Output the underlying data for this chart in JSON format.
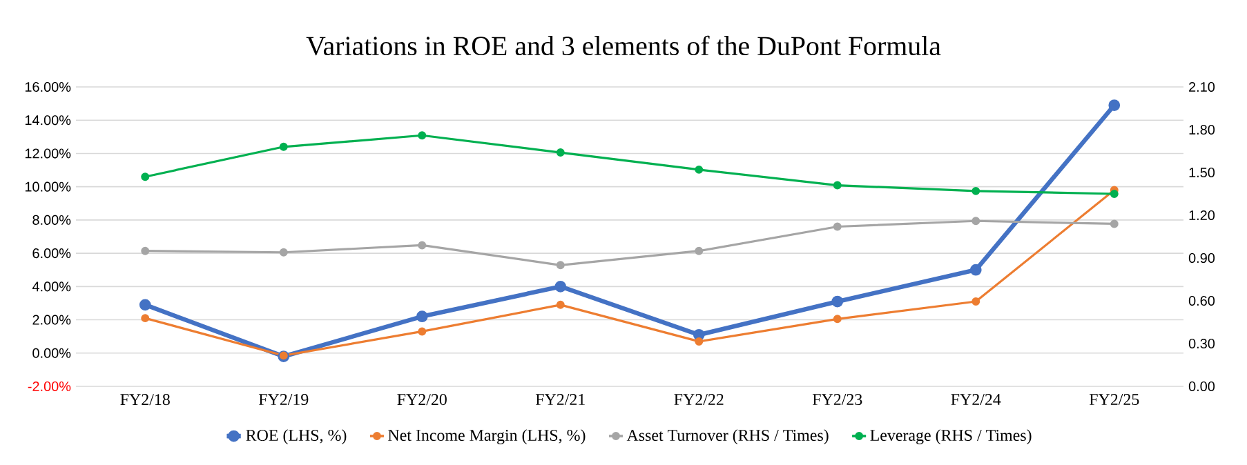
{
  "chart_data": {
    "type": "line",
    "title": "Variations in ROE and 3 elements of the DuPont Formula",
    "categories": [
      "FY2/18",
      "FY2/19",
      "FY2/20",
      "FY2/21",
      "FY2/22",
      "FY2/23",
      "FY2/24",
      "FY2/25"
    ],
    "series": [
      {
        "name": "ROE (LHS, %)",
        "color": "#4472c4",
        "values": [
          2.9,
          -0.2,
          2.2,
          4.0,
          1.1,
          3.1,
          5.0,
          14.9
        ]
      },
      {
        "name": "Net Income Margin (LHS, %)",
        "color": "#ed7d31",
        "values": [
          2.1,
          -0.15,
          1.3,
          2.9,
          0.7,
          2.05,
          3.1,
          9.8
        ]
      },
      {
        "name": "Asset Turnover (RHS / Times)",
        "color": "#a5a5a5",
        "axis": "y2",
        "values": [
          0.95,
          0.94,
          0.99,
          0.85,
          0.95,
          1.12,
          1.16,
          1.14
        ]
      },
      {
        "name": "Leverage (RHS / Times)",
        "color": "#00b050",
        "axis": "y2",
        "values": [
          1.47,
          1.68,
          1.76,
          1.64,
          1.52,
          1.41,
          1.37,
          1.35
        ]
      }
    ],
    "ylim": [
      -2,
      16
    ],
    "yticks": [
      {
        "value": -2,
        "label": "-2.00%"
      },
      {
        "value": 0,
        "label": "0.00%"
      },
      {
        "value": 2,
        "label": "2.00%"
      },
      {
        "value": 4,
        "label": "4.00%"
      },
      {
        "value": 6,
        "label": "6.00%"
      },
      {
        "value": 8,
        "label": "8.00%"
      },
      {
        "value": 10,
        "label": "10.00%"
      },
      {
        "value": 12,
        "label": "12.00%"
      },
      {
        "value": 14,
        "label": "14.00%"
      },
      {
        "value": 16,
        "label": "16.00%"
      }
    ],
    "y2lim": [
      0,
      2.1
    ],
    "y2ticks": [
      {
        "value": 0,
        "label": "0.00"
      },
      {
        "value": 0.3,
        "label": "0.30"
      },
      {
        "value": 0.6,
        "label": "0.60"
      },
      {
        "value": 0.9,
        "label": "0.90"
      },
      {
        "value": 1.2,
        "label": "1.20"
      },
      {
        "value": 1.5,
        "label": "1.50"
      },
      {
        "value": 1.8,
        "label": "1.80"
      },
      {
        "value": 2.1,
        "label": "2.10"
      }
    ],
    "grid": "y",
    "legend": "bottom",
    "marker": "circle",
    "line_style": "solid"
  }
}
